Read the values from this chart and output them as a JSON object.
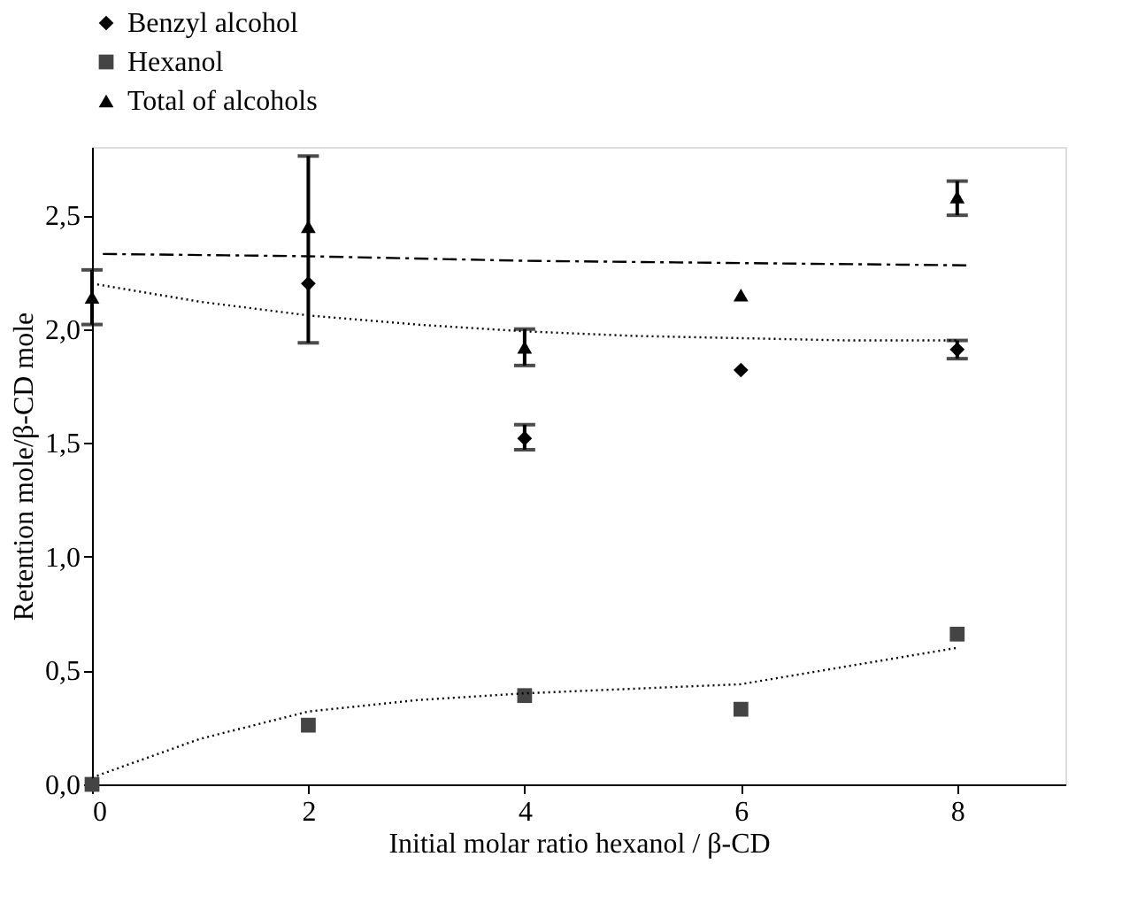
{
  "chart_data": {
    "type": "scatter",
    "xlabel": "Initial molar ratio hexanol / β-CD",
    "ylabel": "Retention mole/β-CD mole",
    "x": [
      0,
      2,
      4,
      6,
      8
    ],
    "series": [
      {
        "name": "Benzyl alcohol",
        "color": "#000000",
        "marker": "diamond",
        "values": [
          null,
          2.2,
          1.52,
          1.82,
          1.91
        ],
        "errors": [
          null,
          null,
          [
            1.47,
            1.58
          ],
          null,
          [
            1.87,
            1.95
          ]
        ]
      },
      {
        "name": "Hexanol",
        "color": "#444444",
        "marker": "square",
        "values": [
          0.0,
          0.26,
          0.39,
          0.33,
          0.66
        ]
      },
      {
        "name": "Total of alcohols",
        "color": "#000000",
        "marker": "triangle",
        "values": [
          2.14,
          2.45,
          1.92,
          2.15,
          2.58
        ],
        "errors": [
          [
            2.02,
            2.26
          ],
          [
            1.94,
            2.76
          ],
          [
            1.84,
            2.0
          ],
          null,
          [
            2.5,
            2.65
          ]
        ]
      },
      {
        "type": "line",
        "color": "#000000",
        "line_style": "dashed",
        "x": [
          0.1,
          2,
          4,
          6,
          8.1
        ],
        "values": [
          2.33,
          2.32,
          2.3,
          2.29,
          2.28
        ]
      },
      {
        "type": "line",
        "color": "#000000",
        "line_style": "dotted",
        "x": [
          0,
          1,
          2,
          3,
          4,
          5,
          6,
          7,
          8
        ],
        "values": [
          2.2,
          2.12,
          2.06,
          2.02,
          1.99,
          1.97,
          1.96,
          1.95,
          1.95
        ]
      },
      {
        "type": "line",
        "color": "#000000",
        "line_style": "dotted",
        "x": [
          0,
          1,
          2,
          3,
          4,
          5,
          6,
          7,
          8
        ],
        "values": [
          0.03,
          0.2,
          0.32,
          0.37,
          0.4,
          0.42,
          0.44,
          0.52,
          0.6
        ]
      }
    ],
    "xlim": [
      0,
      9
    ],
    "xticks": [
      0,
      2,
      4,
      6,
      8
    ],
    "ylim": [
      0,
      2.8
    ],
    "yticks": [
      {
        "value": 0,
        "label": "0,0"
      },
      {
        "value": 0.5,
        "label": "0,5"
      },
      {
        "value": 1,
        "label": "1,0"
      },
      {
        "value": 1.5,
        "label": "1,5"
      },
      {
        "value": 2,
        "label": "2,0"
      },
      {
        "value": 2.5,
        "label": "2,5"
      }
    ],
    "grid": false,
    "legend": "top"
  }
}
